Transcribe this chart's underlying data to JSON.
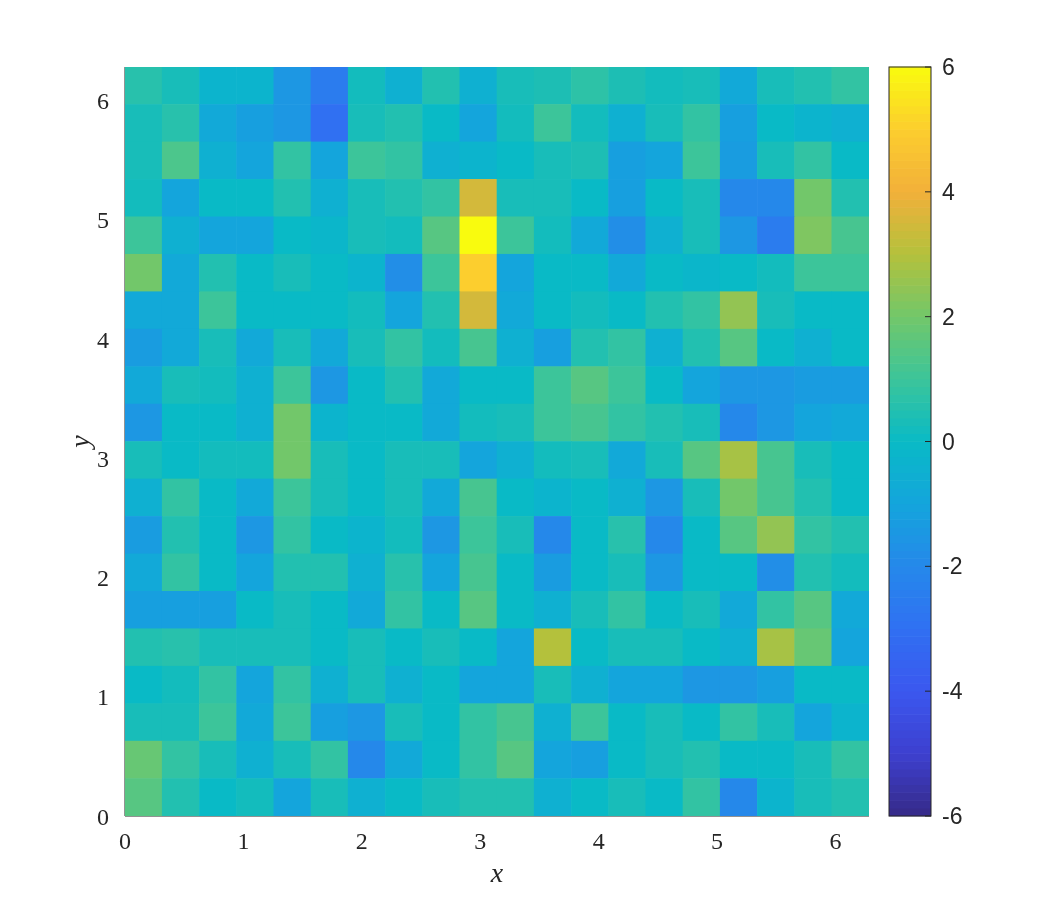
{
  "chart_data": {
    "type": "heatmap",
    "xlabel": "x",
    "ylabel": "y",
    "xlim": [
      0,
      6.283
    ],
    "ylim": [
      0,
      6.283
    ],
    "xticks": [
      0,
      1,
      2,
      3,
      4,
      5,
      6
    ],
    "yticks": [
      0,
      1,
      2,
      3,
      4,
      5,
      6
    ],
    "clim": [
      -6,
      6
    ],
    "cticks": [
      -6,
      -4,
      -2,
      0,
      2,
      4,
      6
    ],
    "cells": [
      [
        0.6,
        0.3,
        -0.3,
        -0.3,
        -1.5,
        -2.5,
        0.2,
        -0.5,
        0.5,
        -0.5,
        0.3,
        0.4,
        0.7,
        0.4,
        0.2,
        0.3,
        -0.8,
        0.3,
        0.5,
        0.8
      ],
      [
        0.3,
        0.6,
        -0.8,
        -1.2,
        -1.5,
        -3,
        0.3,
        0.5,
        0,
        -1,
        0.2,
        1,
        0.2,
        -0.5,
        0.3,
        0.8,
        -1.2,
        0,
        -0.3,
        -0.5
      ],
      [
        0.3,
        1.3,
        -0.5,
        -1,
        0.8,
        -1,
        1,
        0.8,
        -0.5,
        -0.3,
        0,
        0.3,
        0.4,
        -1.2,
        -1,
        1,
        -1.3,
        0.3,
        0.8,
        0
      ],
      [
        0.2,
        -1,
        0,
        0,
        0.5,
        -0.5,
        0.3,
        0.5,
        0.8,
        3.5,
        0.3,
        0.3,
        0,
        -1.2,
        0,
        0.3,
        -2,
        -2,
        2,
        0.5
      ],
      [
        1,
        -0.5,
        -1,
        -1,
        0,
        -0.2,
        0.3,
        0.2,
        1.5,
        6,
        1,
        0.2,
        -0.8,
        -1.8,
        -0.5,
        0.3,
        -1.5,
        -2.5,
        2.2,
        1.2
      ],
      [
        2,
        -0.8,
        0.5,
        0,
        0.3,
        0,
        -0.3,
        -1.8,
        1,
        5,
        -1,
        0,
        0,
        -0.8,
        0,
        -0.2,
        0,
        0.2,
        1,
        1
      ],
      [
        -0.8,
        -0.8,
        1,
        0,
        0,
        0,
        0.2,
        -1,
        0.5,
        3.5,
        -0.8,
        0,
        0.2,
        0,
        0.5,
        0.8,
        2.5,
        0.3,
        0,
        0
      ],
      [
        -1.3,
        -0.8,
        0.3,
        -0.8,
        0.3,
        -0.8,
        0.3,
        0.8,
        0.2,
        1.2,
        -0.5,
        -1.2,
        0.5,
        0.8,
        -0.5,
        0.5,
        1.5,
        0,
        -0.5,
        0
      ],
      [
        -0.8,
        0.3,
        0.2,
        -0.5,
        1,
        -1.5,
        0,
        0.5,
        -0.8,
        0,
        0,
        1,
        1.5,
        1,
        0,
        -1,
        -1.5,
        -1.5,
        -1.3,
        -1.3
      ],
      [
        -1.5,
        0,
        0,
        -0.5,
        2,
        -0.3,
        0,
        0,
        -0.8,
        0.2,
        0.3,
        1,
        1.2,
        0.8,
        0.5,
        0.3,
        -2,
        -1.5,
        -1,
        -0.8
      ],
      [
        0.3,
        0,
        0.2,
        0.2,
        2,
        0.3,
        0,
        0.3,
        0.3,
        -1,
        -0.5,
        0.2,
        0.3,
        -0.8,
        0.3,
        1.5,
        2.8,
        1.2,
        0.3,
        0
      ],
      [
        -0.5,
        0.8,
        0,
        -0.8,
        1,
        0.3,
        0,
        0.3,
        -0.8,
        1.2,
        0,
        -0.3,
        0,
        -0.5,
        -1.5,
        0.3,
        2,
        1.2,
        0.5,
        0
      ],
      [
        -1.3,
        0.5,
        0,
        -1.5,
        0.8,
        0,
        -0.3,
        0.2,
        -1.5,
        1,
        0.3,
        -2,
        0,
        0.6,
        -2,
        0,
        1.5,
        2.5,
        0.8,
        0.5
      ],
      [
        -0.8,
        0.8,
        0,
        -1,
        0.5,
        0.5,
        -0.5,
        0.6,
        -1,
        1.2,
        0,
        -1.3,
        0,
        0.3,
        -1.5,
        0,
        0,
        -1.8,
        0.5,
        0.2
      ],
      [
        -1.2,
        -1.2,
        -1.2,
        0,
        0.3,
        0,
        -0.8,
        0.8,
        0,
        1.5,
        0,
        -0.5,
        0.3,
        0.8,
        0,
        0.3,
        -0.8,
        0.8,
        1.5,
        -0.8
      ],
      [
        0.5,
        0.6,
        0.3,
        0.3,
        0.3,
        0,
        0.3,
        0,
        0.3,
        0,
        -1,
        3,
        0,
        0.3,
        0.3,
        0,
        -0.5,
        2.8,
        1.8,
        -1
      ],
      [
        0,
        0.2,
        0.8,
        -1,
        0.8,
        -0.5,
        0.3,
        -0.5,
        0,
        -1,
        -1,
        0.3,
        -0.5,
        -1,
        -1,
        -1.5,
        -1.5,
        -1.2,
        0,
        0
      ],
      [
        0.3,
        0.3,
        1,
        -0.8,
        1,
        -1.2,
        -1.5,
        0.3,
        0,
        0.8,
        1.2,
        -0.5,
        1,
        0,
        0.3,
        0,
        0.8,
        0.3,
        -1,
        -0.3
      ],
      [
        1.8,
        0.8,
        0.3,
        -0.5,
        0.3,
        0.8,
        -2,
        -0.8,
        0,
        0.8,
        1.5,
        -1,
        -1.2,
        0,
        0.3,
        0.5,
        0,
        0,
        0.3,
        0.8
      ],
      [
        1.5,
        0.5,
        0,
        0.2,
        -1,
        0.3,
        -0.5,
        0,
        0.3,
        0.5,
        0.5,
        -0.5,
        0,
        0.3,
        0,
        0.8,
        -2,
        -0.3,
        0.3,
        0.5
      ]
    ]
  }
}
